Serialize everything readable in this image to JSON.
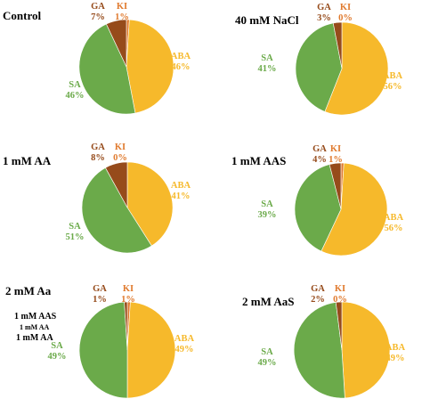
{
  "colors": {
    "ABA": "#F6B92B",
    "SA": "#6BAA4A",
    "GA": "#964B1B",
    "KI": "#E07A2E"
  },
  "chart_data": [
    {
      "type": "pie",
      "title": "Control",
      "slices": [
        {
          "name": "KI",
          "value": 1,
          "label": "KI",
          "pct": "1%"
        },
        {
          "name": "ABA",
          "value": 46,
          "label": "ABA",
          "pct": "46%"
        },
        {
          "name": "SA",
          "value": 46,
          "label": "SA",
          "pct": "46%"
        },
        {
          "name": "GA",
          "value": 7,
          "label": "GA",
          "pct": "7%"
        }
      ]
    },
    {
      "type": "pie",
      "title": "40 mM NaCl",
      "slices": [
        {
          "name": "KI",
          "value": 0,
          "label": "KI",
          "pct": "0%"
        },
        {
          "name": "ABA",
          "value": 56,
          "label": "ABA",
          "pct": "56%"
        },
        {
          "name": "SA",
          "value": 41,
          "label": "SA",
          "pct": "41%"
        },
        {
          "name": "GA",
          "value": 3,
          "label": "GA",
          "pct": "3%"
        }
      ]
    },
    {
      "type": "pie",
      "title": "1 mM AA",
      "slices": [
        {
          "name": "KI",
          "value": 0,
          "label": "KI",
          "pct": "0%"
        },
        {
          "name": "ABA",
          "value": 41,
          "label": "ABA",
          "pct": "41%"
        },
        {
          "name": "SA",
          "value": 51,
          "label": "SA",
          "pct": "51%"
        },
        {
          "name": "GA",
          "value": 8,
          "label": "GA",
          "pct": "8%"
        }
      ]
    },
    {
      "type": "pie",
      "title": "1 mM AAS",
      "slices": [
        {
          "name": "KI",
          "value": 1,
          "label": "KI",
          "pct": "1%"
        },
        {
          "name": "ABA",
          "value": 56,
          "label": "ABA",
          "pct": "56%"
        },
        {
          "name": "SA",
          "value": 39,
          "label": "SA",
          "pct": "39%"
        },
        {
          "name": "GA",
          "value": 4,
          "label": "GA",
          "pct": "4%"
        }
      ]
    },
    {
      "type": "pie",
      "title": "2 mM Aa",
      "extra_labels": [
        "1 mM AAS",
        "1 mM AA",
        "1 mM AA"
      ],
      "slices": [
        {
          "name": "KI",
          "value": 1,
          "label": "KI",
          "pct": "1%"
        },
        {
          "name": "ABA",
          "value": 49,
          "label": "ABA",
          "pct": "49%"
        },
        {
          "name": "SA",
          "value": 49,
          "label": "SA",
          "pct": "49%"
        },
        {
          "name": "GA",
          "value": 1,
          "label": "GA",
          "pct": "1%"
        }
      ]
    },
    {
      "type": "pie",
      "title": "2 mM AaS",
      "slices": [
        {
          "name": "KI",
          "value": 0,
          "label": "KI",
          "pct": "0%"
        },
        {
          "name": "ABA",
          "value": 49,
          "label": "ABA",
          "pct": "49%"
        },
        {
          "name": "SA",
          "value": 49,
          "label": "SA",
          "pct": "49%"
        },
        {
          "name": "GA",
          "value": 2,
          "label": "GA",
          "pct": "2%"
        }
      ]
    }
  ]
}
